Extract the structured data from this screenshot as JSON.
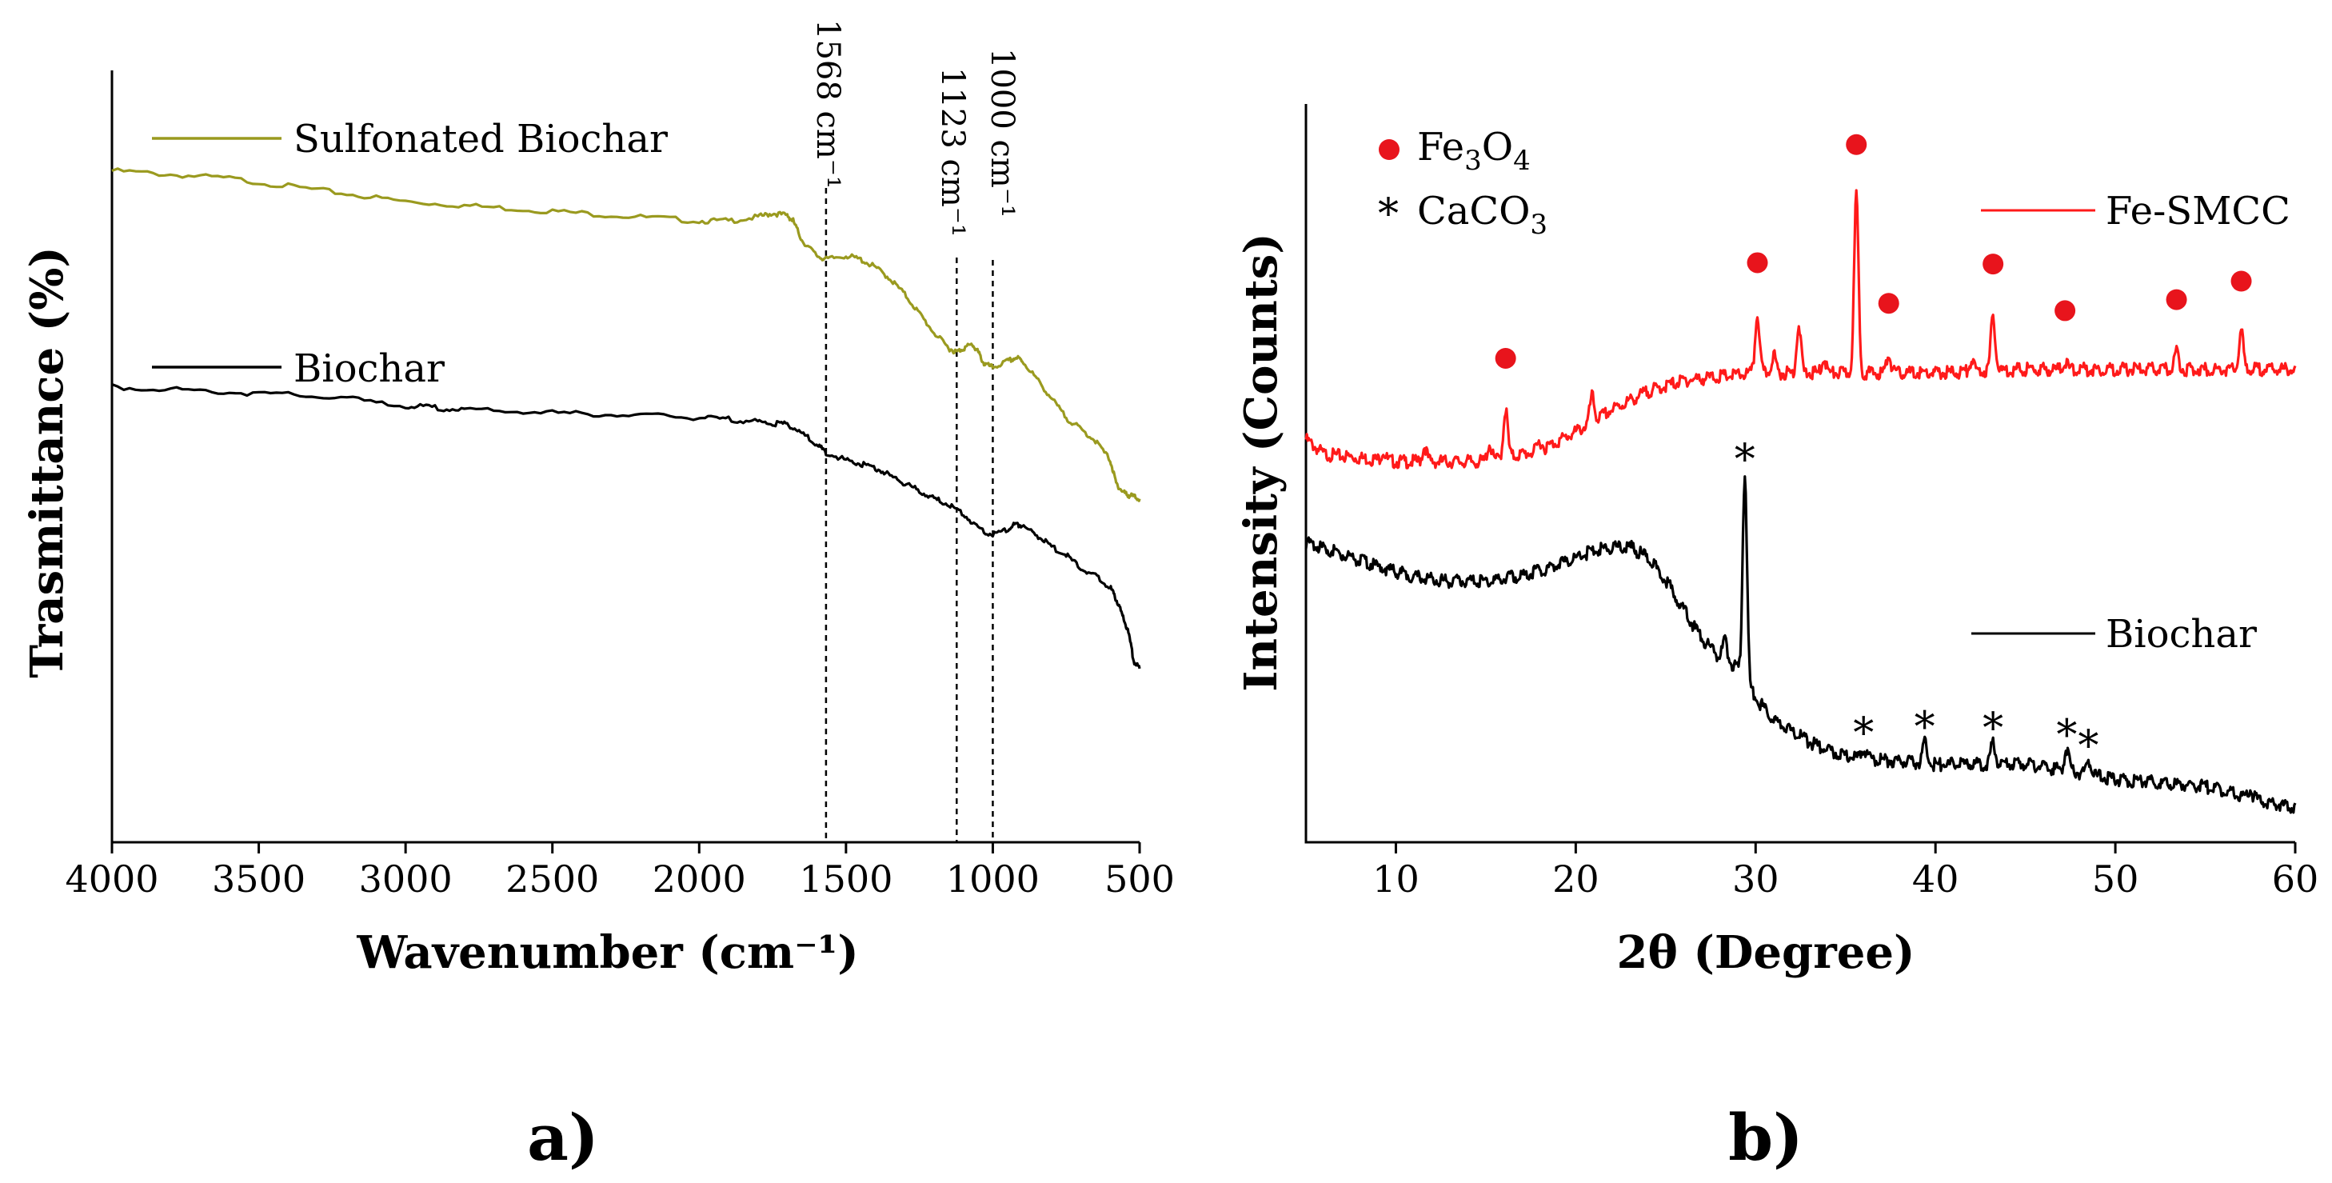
{
  "chart_data": [
    {
      "type": "line",
      "panel_label": "a)",
      "xlabel": "Wavenumber (cm⁻¹)",
      "ylabel": "Trasmittance (%)",
      "xlim": [
        4000,
        500
      ],
      "ylim": [
        0,
        100
      ],
      "x_ticks": [
        4000,
        3500,
        3000,
        2500,
        2000,
        1500,
        1000,
        500
      ],
      "x_tick_labels": [
        "4000",
        "3500",
        "3000",
        "2500",
        "2000",
        "1500",
        "1000",
        "500"
      ],
      "y_ticks_shown": false,
      "legend": [
        {
          "label": "Sulfonated Biochar",
          "color": "#9a9a1f"
        },
        {
          "label": "Biochar",
          "color": "#000000"
        }
      ],
      "annotations": [
        {
          "x": 1568,
          "text": "1568 cm⁻¹"
        },
        {
          "x": 1123,
          "text": "1123 cm⁻¹"
        },
        {
          "x": 1000,
          "text": "1000 cm⁻¹"
        }
      ],
      "series": [
        {
          "name": "Sulfonated Biochar",
          "color": "#9a9a1f",
          "x": [
            4000,
            3800,
            3600,
            3400,
            3200,
            3000,
            2800,
            2600,
            2400,
            2200,
            2000,
            1900,
            1800,
            1750,
            1700,
            1680,
            1650,
            1600,
            1568,
            1500,
            1450,
            1400,
            1350,
            1300,
            1250,
            1200,
            1150,
            1123,
            1100,
            1070,
            1050,
            1030,
            1000,
            950,
            920,
            900,
            850,
            800,
            750,
            700,
            650,
            600,
            580,
            560,
            540,
            520,
            500
          ],
          "y": [
            87,
            86.5,
            86,
            85,
            84,
            83,
            82.5,
            82,
            81.5,
            81,
            80.5,
            80.5,
            81,
            81.5,
            81.2,
            80.5,
            78,
            76,
            75.5,
            76,
            75.5,
            74.5,
            73,
            71,
            68.5,
            66,
            64,
            63.5,
            64,
            64.5,
            63.5,
            62,
            61.5,
            62.3,
            62.8,
            62.4,
            60,
            57.5,
            55,
            53.5,
            52,
            49.5,
            46.5,
            45.5,
            45,
            44.8,
            44.5
          ]
        },
        {
          "name": "Biochar",
          "color": "#000000",
          "x": [
            4000,
            3800,
            3600,
            3400,
            3200,
            3000,
            2900,
            2800,
            2600,
            2400,
            2200,
            2000,
            1900,
            1800,
            1750,
            1700,
            1650,
            1600,
            1568,
            1500,
            1450,
            1400,
            1350,
            1300,
            1250,
            1200,
            1150,
            1100,
            1050,
            1000,
            950,
            920,
            900,
            850,
            800,
            750,
            700,
            650,
            600,
            580,
            560,
            540,
            520,
            500
          ],
          "y": [
            59,
            58.7,
            58.3,
            58,
            57.5,
            56.5,
            56.3,
            56,
            55.8,
            55.5,
            55.3,
            55,
            54.8,
            54.5,
            54.2,
            54.2,
            53,
            51.5,
            50.5,
            49.5,
            49,
            48.5,
            47.5,
            46.5,
            45.5,
            44.5,
            43.8,
            42.5,
            40.7,
            39.8,
            40.5,
            41.3,
            41,
            39.8,
            38.3,
            37.2,
            35.5,
            34.5,
            33,
            31.5,
            29.5,
            27.5,
            23.5,
            22.5
          ]
        }
      ]
    },
    {
      "type": "line",
      "panel_label": "b)",
      "xlabel": "2θ (Degree)",
      "ylabel": "Intensity (Counts)",
      "xlim": [
        5,
        60
      ],
      "ylim": [
        0,
        100
      ],
      "x_ticks": [
        10,
        20,
        30,
        40,
        50,
        60
      ],
      "x_tick_labels": [
        "10",
        "20",
        "30",
        "40",
        "50",
        "60"
      ],
      "y_ticks_shown": false,
      "legend": [
        {
          "label": "Fe-SMCC",
          "color": "#ff1a1a"
        },
        {
          "label": "Biochar",
          "color": "#000000"
        }
      ],
      "marker_legend": [
        {
          "symbol": "circle",
          "color": "#e8141c",
          "text": "Fe",
          "sub1": "3",
          "text2": "O",
          "sub2": "4"
        },
        {
          "symbol": "asterisk",
          "color": "#000000",
          "text": "CaCO",
          "sub1": "3"
        }
      ],
      "fe3o4_peaks": [
        16.1,
        30.1,
        37.4,
        35.6,
        43.2,
        47.2,
        53.4,
        57.0
      ],
      "caco3_peaks": [
        29.4,
        36.0,
        39.4,
        43.2,
        47.3,
        48.5
      ],
      "series": [
        {
          "name": "Fe-SMCC",
          "color": "#ff1a1a",
          "baseline_x": [
            5,
            6,
            8,
            10,
            12,
            14,
            15,
            17,
            18,
            20,
            22,
            24,
            26,
            28,
            30,
            32,
            35,
            40,
            45,
            50,
            55,
            60
          ],
          "baseline_y": [
            55,
            53,
            52.5,
            52,
            52,
            52,
            52,
            53,
            53.5,
            56,
            59,
            61.5,
            63,
            63.5,
            64,
            64,
            64,
            64,
            64.5,
            64.5,
            64.5,
            64.5
          ],
          "peaks": [
            {
              "x": 9.3,
              "height": 1.2
            },
            {
              "x": 11.6,
              "height": 2
            },
            {
              "x": 15.2,
              "height": 2.2
            },
            {
              "x": 16.1,
              "height": 6.5
            },
            {
              "x": 18.0,
              "height": 1.2
            },
            {
              "x": 20.9,
              "height": 3.5
            },
            {
              "x": 30.1,
              "height": 8
            },
            {
              "x": 31.0,
              "height": 2.5
            },
            {
              "x": 32.4,
              "height": 6.5
            },
            {
              "x": 33.8,
              "height": 2
            },
            {
              "x": 35.6,
              "height": 24
            },
            {
              "x": 37.4,
              "height": 2.5
            },
            {
              "x": 42.0,
              "height": 1.5
            },
            {
              "x": 43.2,
              "height": 7.5
            },
            {
              "x": 47.2,
              "height": 1
            },
            {
              "x": 53.4,
              "height": 2.5
            },
            {
              "x": 57.0,
              "height": 5
            }
          ]
        },
        {
          "name": "Biochar",
          "color": "#000000",
          "baseline_x": [
            5,
            7,
            9,
            11,
            13,
            15,
            17,
            19,
            21,
            23,
            24,
            25,
            26,
            27,
            28,
            29,
            30,
            31,
            33,
            35,
            40,
            45,
            50,
            55,
            60
          ],
          "baseline_y": [
            41,
            39.5,
            37.8,
            36.4,
            35.8,
            35.8,
            36.5,
            38,
            40,
            40.5,
            39,
            36,
            32,
            28,
            25.5,
            24,
            20,
            17,
            14,
            12,
            11,
            11,
            9,
            8,
            5
          ],
          "peaks": [
            {
              "x": 28.3,
              "height": 3
            },
            {
              "x": 29.4,
              "height": 28
            },
            {
              "x": 36.0,
              "height": 1.5
            },
            {
              "x": 39.4,
              "height": 3
            },
            {
              "x": 43.2,
              "height": 3
            },
            {
              "x": 47.3,
              "height": 3
            },
            {
              "x": 48.5,
              "height": 2
            },
            {
              "x": 57.5,
              "height": 1
            }
          ]
        }
      ]
    }
  ]
}
